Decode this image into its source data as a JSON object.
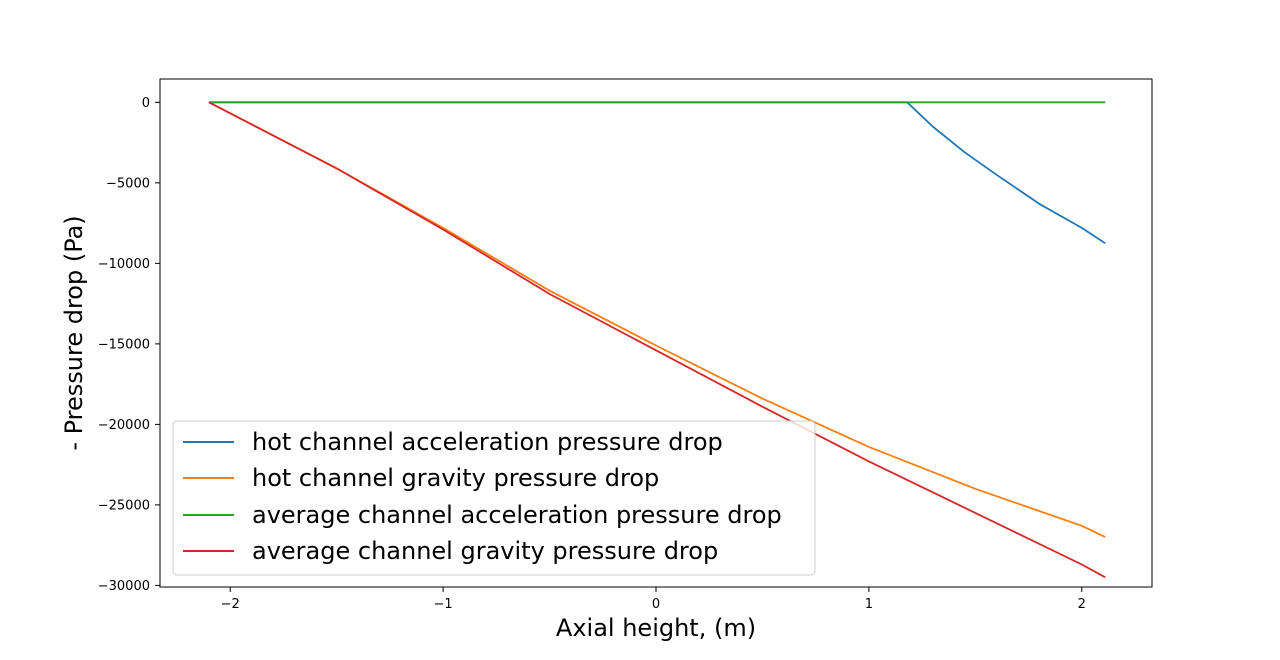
{
  "chart_data": {
    "type": "line",
    "title": "",
    "xlabel": "Axial height, (m)",
    "ylabel": "- Pressure drop (Pa)",
    "xlim": [
      -2.33,
      2.33
    ],
    "ylim": [
      -30100,
      1450
    ],
    "x_ticks": [
      -2,
      -1,
      0,
      1,
      2
    ],
    "x_tick_labels": [
      "−2",
      "−1",
      "0",
      "1",
      "2"
    ],
    "y_ticks": [
      0,
      -5000,
      -10000,
      -15000,
      -20000,
      -25000,
      -30000
    ],
    "y_tick_labels": [
      "0",
      "−5000",
      "−10000",
      "−15000",
      "−20000",
      "−25000",
      "−30000"
    ],
    "grid": false,
    "legend_position": "lower-left",
    "series": [
      {
        "name": "hot channel acceleration pressure drop",
        "color": "#1f77b4",
        "x": [
          -2.1,
          -1.0,
          0.0,
          1.0,
          1.18,
          1.3,
          1.45,
          1.6,
          1.8,
          2.0,
          2.11
        ],
        "y": [
          0,
          0,
          0,
          0,
          0,
          -1500,
          -3100,
          -4500,
          -6300,
          -7800,
          -8750
        ]
      },
      {
        "name": "hot channel gravity pressure drop",
        "color": "#ff7f0e",
        "x": [
          -2.1,
          -1.5,
          -1.0,
          -0.5,
          0.0,
          0.5,
          1.0,
          1.5,
          2.0,
          2.11
        ],
        "y": [
          0,
          -4100,
          -7800,
          -11700,
          -15100,
          -18400,
          -21400,
          -24000,
          -26300,
          -27000
        ]
      },
      {
        "name": "average channel acceleration pressure drop",
        "color": "#2ca02c",
        "x": [
          -2.1,
          -1.0,
          0.0,
          1.0,
          2.11
        ],
        "y": [
          0,
          0,
          0,
          0,
          0
        ]
      },
      {
        "name": "average channel gravity pressure drop",
        "color": "#d62728",
        "x": [
          -2.1,
          -1.5,
          -1.0,
          -0.5,
          0.0,
          0.5,
          1.0,
          1.5,
          2.0,
          2.11
        ],
        "y": [
          0,
          -4100,
          -7900,
          -11900,
          -15400,
          -18900,
          -22300,
          -25500,
          -28700,
          -29500
        ]
      }
    ]
  }
}
